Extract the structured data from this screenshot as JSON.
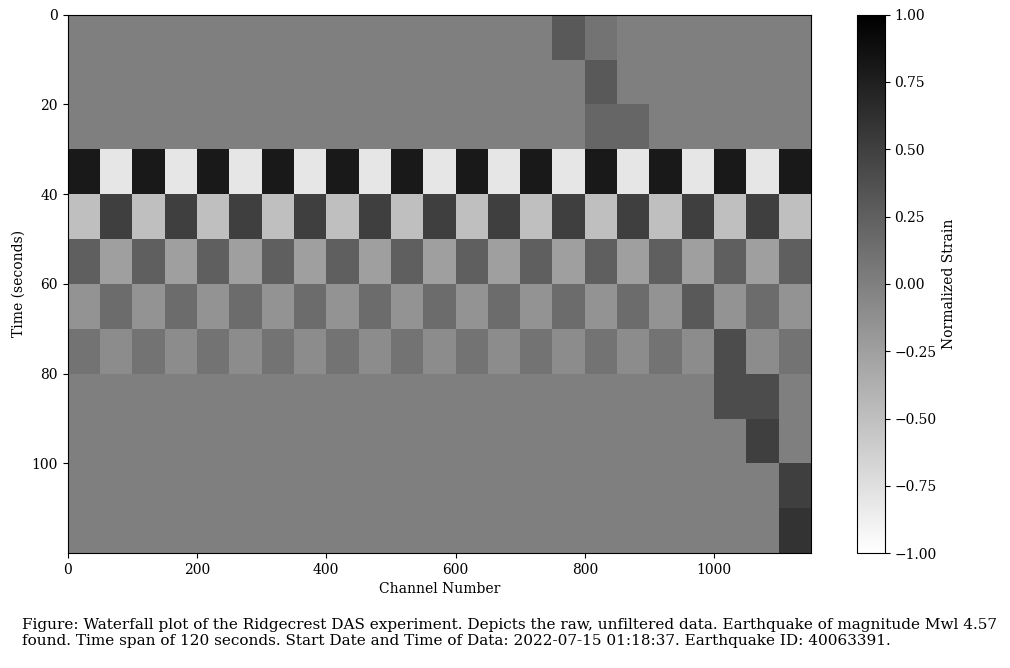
{
  "chart_data": {
    "type": "heatmap",
    "xlabel": "Channel Number",
    "ylabel": "Time (seconds)",
    "caption": "Figure: Waterfall plot of the Ridgecrest DAS experiment. Depicts the raw, unfiltered data. Earthquake of magnitude Mwl 4.57 found. Time span of 120 seconds. Start Date and Time of Data: 2022-07-15 01:18:37. Earthquake ID: 40063391.",
    "x_edges": [
      0,
      50,
      100,
      150,
      200,
      250,
      300,
      350,
      400,
      450,
      500,
      550,
      600,
      650,
      700,
      750,
      800,
      850,
      900,
      950,
      1000,
      1050,
      1100,
      1150
    ],
    "y_edges": [
      0,
      10,
      20,
      30,
      40,
      50,
      60,
      70,
      80,
      90,
      100,
      110,
      120
    ],
    "cells": [
      [
        0,
        0,
        0,
        0,
        0,
        0,
        0,
        0,
        0,
        0,
        0,
        0,
        0,
        0,
        0,
        0.3,
        0.1,
        0,
        0,
        0,
        0,
        0,
        0
      ],
      [
        0,
        0,
        0,
        0,
        0,
        0,
        0,
        0,
        0,
        0,
        0,
        0,
        0,
        0,
        0,
        0,
        0.3,
        0,
        0,
        0,
        0,
        0,
        0
      ],
      [
        0,
        0,
        0,
        0,
        0,
        0,
        0,
        0,
        0,
        0,
        0,
        0,
        0,
        0,
        0,
        0,
        0.2,
        0.2,
        0,
        0,
        0,
        0,
        0
      ],
      [
        0.8,
        -0.8,
        0.8,
        -0.8,
        0.8,
        -0.8,
        0.8,
        -0.8,
        0.8,
        -0.8,
        0.8,
        -0.8,
        0.8,
        -0.8,
        0.8,
        -0.8,
        0.8,
        -0.8,
        0.8,
        -0.8,
        0.8,
        -0.8,
        0.8
      ],
      [
        -0.5,
        0.5,
        -0.5,
        0.5,
        -0.5,
        0.5,
        -0.5,
        0.5,
        -0.5,
        0.5,
        -0.5,
        0.5,
        -0.5,
        0.5,
        -0.5,
        0.5,
        -0.5,
        0.5,
        -0.5,
        0.5,
        -0.5,
        0.5,
        -0.5
      ],
      [
        0.25,
        -0.25,
        0.25,
        -0.25,
        0.25,
        -0.25,
        0.25,
        -0.25,
        0.25,
        -0.25,
        0.25,
        -0.25,
        0.25,
        -0.25,
        0.25,
        -0.25,
        0.25,
        -0.25,
        0.25,
        -0.25,
        0.25,
        -0.25,
        0.25
      ],
      [
        -0.15,
        0.15,
        -0.15,
        0.15,
        -0.15,
        0.15,
        -0.15,
        0.15,
        -0.15,
        0.15,
        -0.15,
        0.15,
        -0.15,
        0.15,
        -0.15,
        0.15,
        -0.15,
        0.15,
        -0.15,
        0.3,
        -0.15,
        0.15,
        -0.15
      ],
      [
        0.1,
        -0.1,
        0.1,
        -0.1,
        0.1,
        -0.1,
        0.1,
        -0.1,
        0.1,
        -0.1,
        0.1,
        -0.1,
        0.1,
        -0.1,
        0.1,
        -0.1,
        0.1,
        -0.1,
        0.1,
        -0.1,
        0.4,
        -0.1,
        0.1
      ],
      [
        0,
        0,
        0,
        0,
        0,
        0,
        0,
        0,
        0,
        0,
        0,
        0,
        0,
        0,
        0,
        0,
        0,
        0,
        0,
        0,
        0.4,
        0.4,
        0
      ],
      [
        0,
        0,
        0,
        0,
        0,
        0,
        0,
        0,
        0,
        0,
        0,
        0,
        0,
        0,
        0,
        0,
        0,
        0,
        0,
        0,
        0,
        0.5,
        0
      ],
      [
        0,
        0,
        0,
        0,
        0,
        0,
        0,
        0,
        0,
        0,
        0,
        0,
        0,
        0,
        0,
        0,
        0,
        0,
        0,
        0,
        0,
        0,
        0.5
      ],
      [
        0,
        0,
        0,
        0,
        0,
        0,
        0,
        0,
        0,
        0,
        0,
        0,
        0,
        0,
        0,
        0,
        0,
        0,
        0,
        0,
        0,
        0,
        0.6
      ]
    ],
    "xlim": [
      0,
      1150
    ],
    "ylim": [
      120,
      0
    ],
    "xticks": [
      0,
      200,
      400,
      600,
      800,
      1000
    ],
    "yticks": [
      0,
      20,
      40,
      60,
      80,
      100
    ],
    "colorbar_label": "Normalized Strain",
    "clim": [
      -1.0,
      1.0
    ],
    "cticks": [
      {
        "value": -1.0,
        "label": "−1.00"
      },
      {
        "value": -0.75,
        "label": "−0.75"
      },
      {
        "value": -0.5,
        "label": "−0.50"
      },
      {
        "value": -0.25,
        "label": "−0.25"
      },
      {
        "value": 0.0,
        "label": "0.00"
      },
      {
        "value": 0.25,
        "label": "0.25"
      },
      {
        "value": 0.5,
        "label": "0.50"
      },
      {
        "value": 0.75,
        "label": "0.75"
      },
      {
        "value": 1.0,
        "label": "1.00"
      }
    ],
    "color": "gray_r"
  }
}
